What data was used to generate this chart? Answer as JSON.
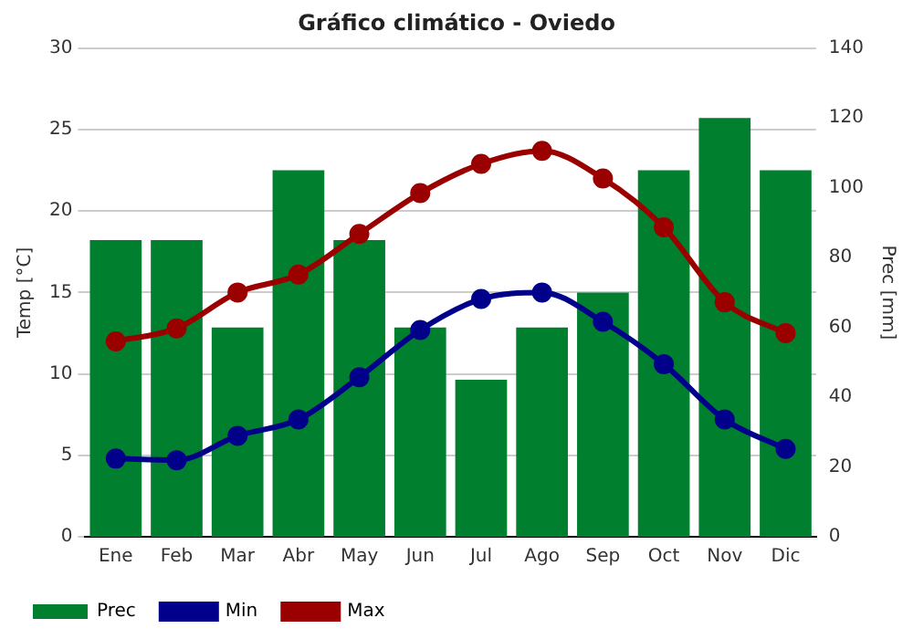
{
  "chart_data": {
    "type": "bar",
    "title": "Gráfico climático - Oviedo",
    "ylabel": "Temp [°C]",
    "y2label": "Prec [mm]",
    "categories": [
      "Ene",
      "Feb",
      "Mar",
      "Abr",
      "May",
      "Jun",
      "Jul",
      "Ago",
      "Sep",
      "Oct",
      "Nov",
      "Dic"
    ],
    "series": [
      {
        "name": "Prec",
        "axis": "y2",
        "color": "#007f2f",
        "values": [
          85,
          85,
          60,
          105,
          85,
          60,
          45,
          60,
          70,
          105,
          120,
          105
        ]
      },
      {
        "name": "Min",
        "type": "line",
        "color": "#00008b",
        "values": [
          4.8,
          4.7,
          6.2,
          7.2,
          9.8,
          12.7,
          14.6,
          15.0,
          13.2,
          10.6,
          7.2,
          5.4
        ]
      },
      {
        "name": "Max",
        "type": "line",
        "color": "#9b0000",
        "values": [
          12.0,
          12.8,
          15.0,
          16.1,
          18.6,
          21.1,
          22.9,
          23.7,
          22.0,
          19.0,
          14.4,
          12.5
        ]
      }
    ],
    "ylim": [
      0,
      30
    ],
    "yticks": [
      0,
      5,
      10,
      15,
      20,
      25,
      30
    ],
    "y2lim": [
      0,
      140
    ],
    "y2ticks": [
      0,
      20,
      40,
      60,
      80,
      100,
      120,
      140
    ],
    "grid": "y",
    "legend": "bottom",
    "marker": "circle",
    "line_style": "solid"
  }
}
